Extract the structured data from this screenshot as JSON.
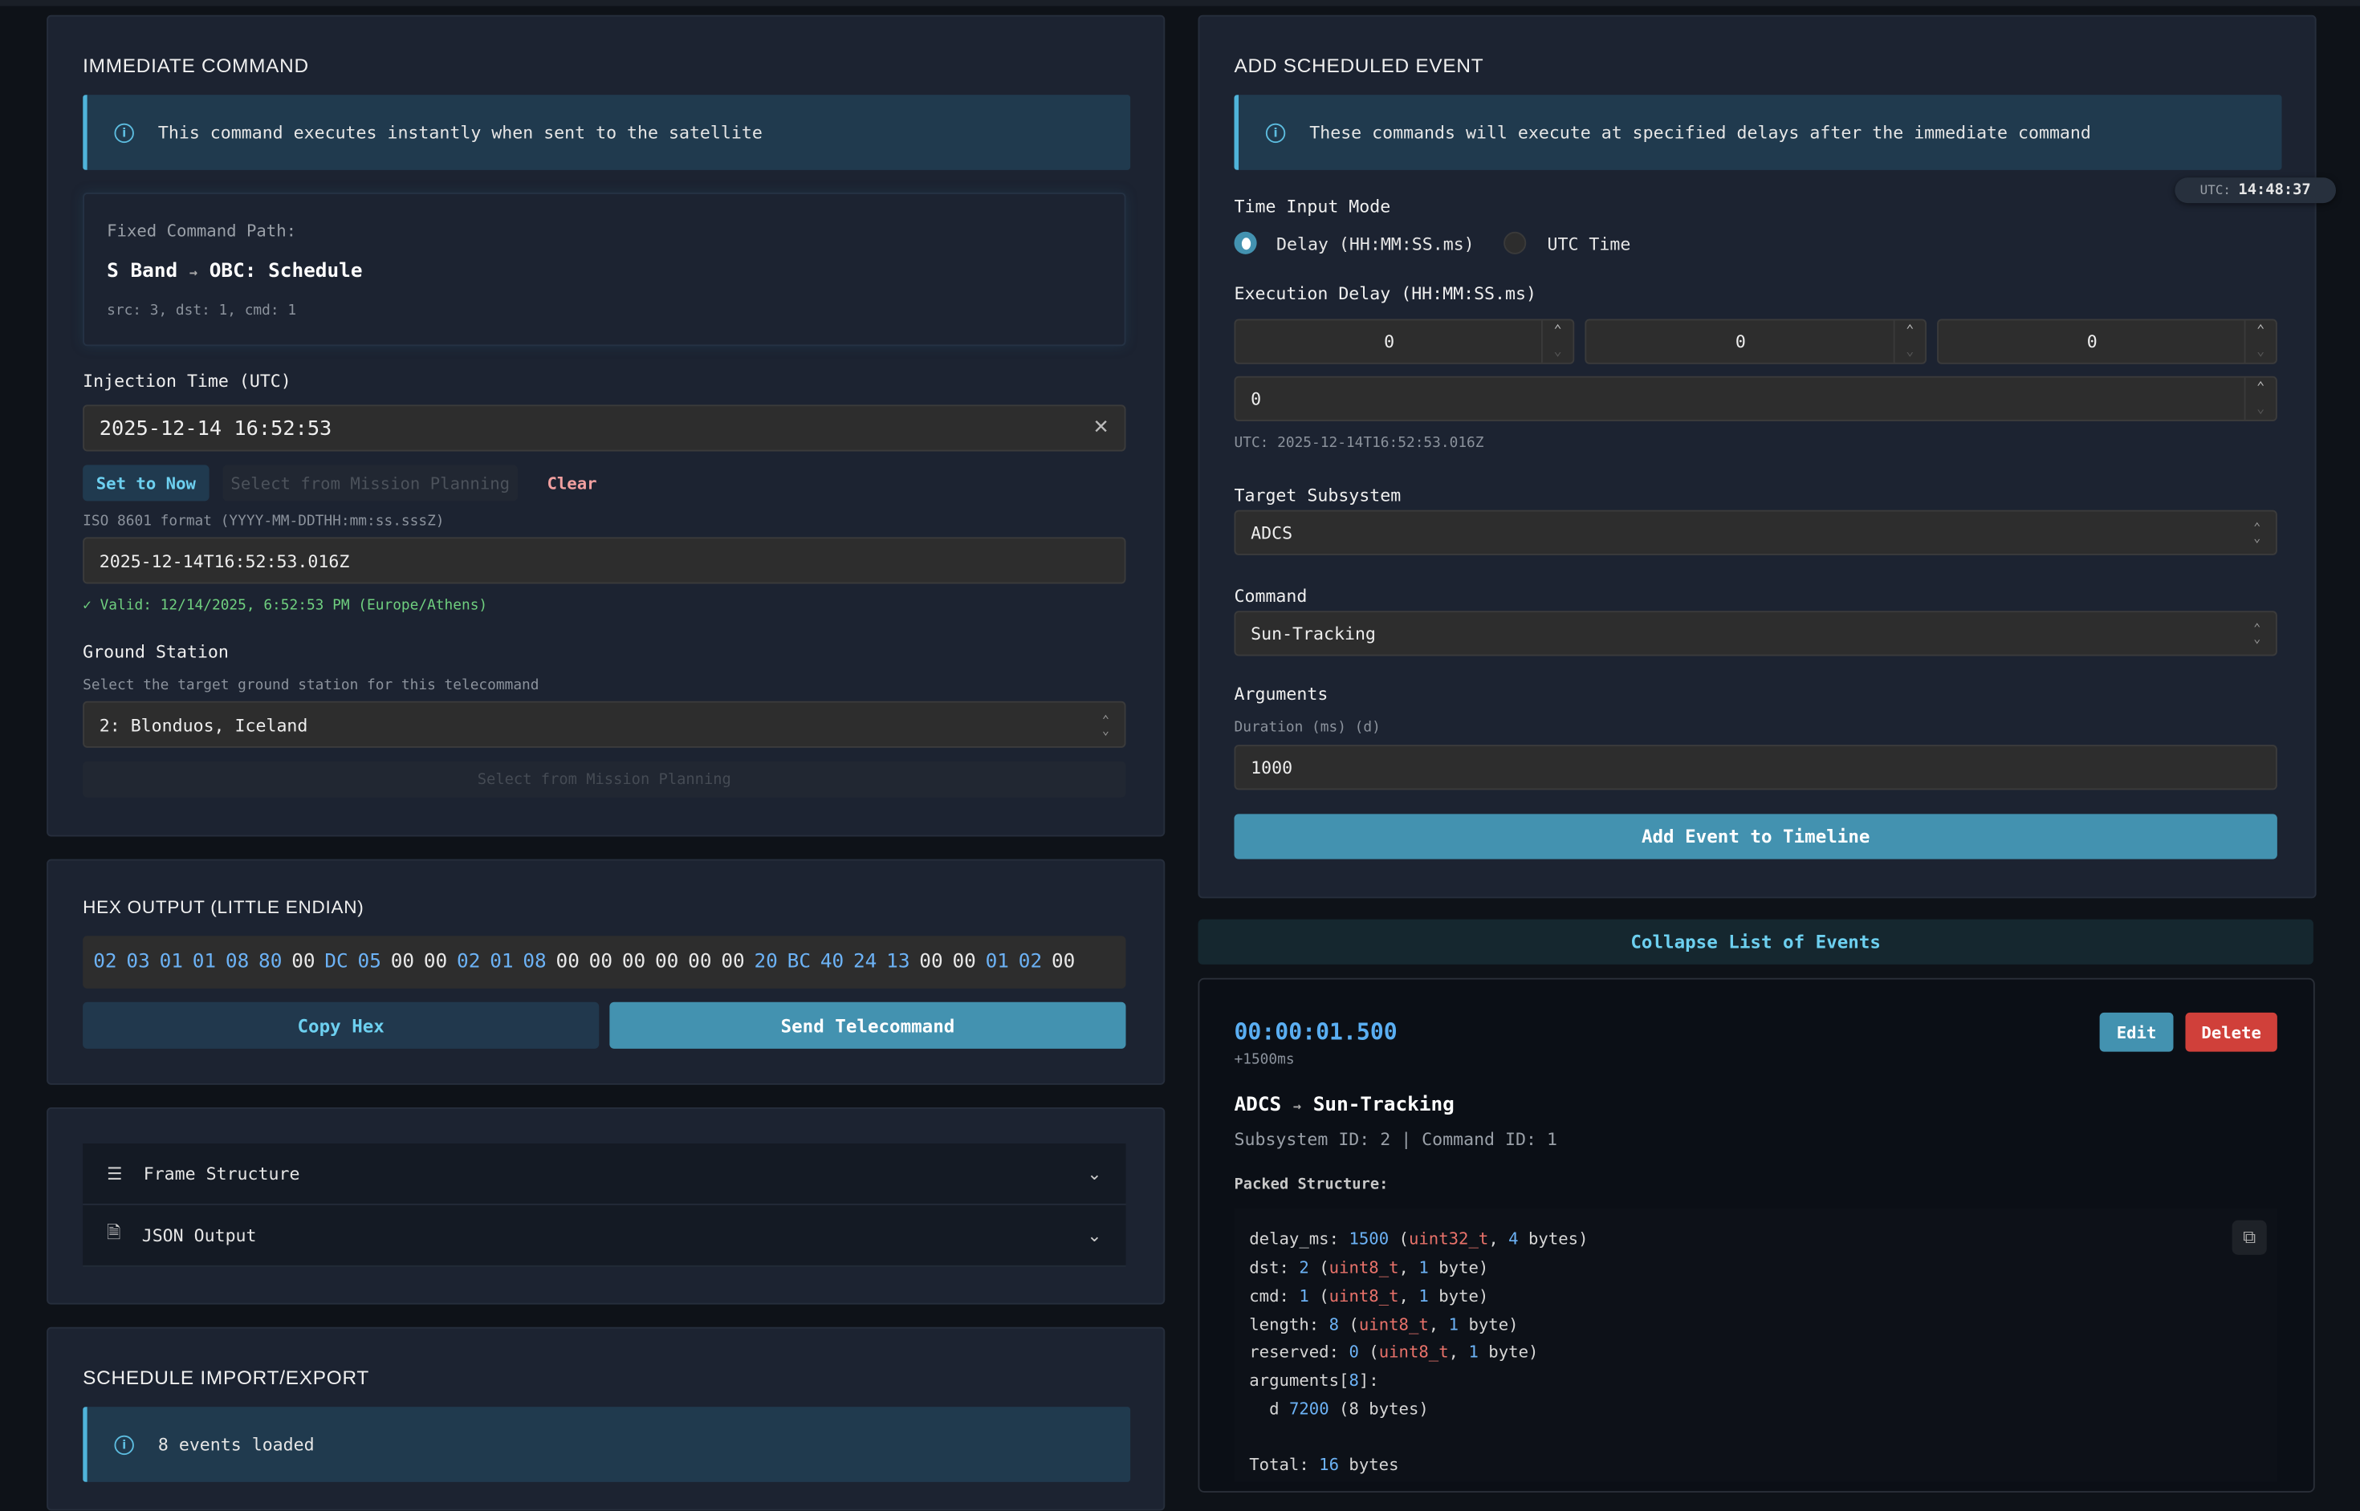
{
  "immediate": {
    "title": "IMMEDIATE COMMAND",
    "info": "This command executes instantly when sent to the satellite",
    "fixed_path_label": "Fixed Command Path:",
    "path_from": "S Band",
    "path_arrow": "→",
    "path_to": "OBC: Schedule",
    "path_ids": "src: 3, dst: 1, cmd: 1",
    "injection_label": "Injection Time (UTC)",
    "injection_value": "2025-12-14 16:52:53",
    "set_now": "Set to Now",
    "select_planning": "Select from Mission Planning",
    "clear": "Clear",
    "iso_label": "ISO 8601 format (YYYY-MM-DDTHH:mm:ss.sssZ)",
    "iso_value": "2025-12-14T16:52:53.016Z",
    "valid_text": "✓ Valid: 12/14/2025, 6:52:53 PM (Europe/Athens)",
    "ground_label": "Ground Station",
    "ground_help": "Select the target ground station for this telecommand",
    "ground_value": "2: Blonduos, Iceland",
    "ground_planning": "Select from Mission Planning"
  },
  "hex": {
    "title": "HEX OUTPUT (LITTLE ENDIAN)",
    "bytes": [
      "02",
      "03",
      "01",
      "01",
      "08",
      "80",
      "00",
      "DC",
      "05",
      "00",
      "00",
      "02",
      "01",
      "08",
      "00",
      "00",
      "00",
      "00",
      "00",
      "00",
      "20",
      "BC",
      "40",
      "24",
      "13",
      "00",
      "00",
      "01",
      "02",
      "00"
    ],
    "copy": "Copy Hex",
    "send": "Send Telecommand"
  },
  "accordion": [
    {
      "label": "Frame Structure",
      "icon": "list-icon"
    },
    {
      "label": "JSON Output",
      "icon": "file-code-icon"
    }
  ],
  "schedule_io": {
    "title": "SCHEDULE IMPORT/EXPORT",
    "info": "8 events loaded"
  },
  "scheduled": {
    "title": "ADD SCHEDULED EVENT",
    "info": "These commands will execute at specified delays after the immediate command",
    "utc_label": "UTC:",
    "utc_clock": "14:48:37",
    "mode_label": "Time Input Mode",
    "mode_delay": "Delay (HH:MM:SS.ms)",
    "mode_utc": "UTC Time",
    "delay_label": "Execution Delay (HH:MM:SS.ms)",
    "hh": "0",
    "mm": "0",
    "ss": "0",
    "ms": "0",
    "utc_preview": "UTC: 2025-12-14T16:52:53.016Z",
    "subsystem_label": "Target Subsystem",
    "subsystem_value": "ADCS",
    "command_label": "Command",
    "command_value": "Sun-Tracking",
    "args_label": "Arguments",
    "arg_name": "Duration (ms) (d)",
    "arg_value": "1000",
    "add_button": "Add Event to Timeline"
  },
  "events": {
    "collapse": "Collapse List of Events",
    "item": {
      "time": "00:00:01.500",
      "offset": "+1500ms",
      "subsystem": "ADCS",
      "arrow": "→",
      "command": "Sun-Tracking",
      "ids": "Subsystem ID: 2 | Command ID: 1",
      "edit": "Edit",
      "delete": "Delete",
      "packed_label": "Packed Structure:",
      "packed_lines": [
        [
          [
            "delay_ms: ",
            ""
          ],
          [
            "1500",
            "num"
          ],
          [
            " (",
            ""
          ],
          [
            "uint32_t",
            "typ"
          ],
          [
            ", ",
            ""
          ],
          [
            "4",
            "num"
          ],
          [
            " bytes)",
            ""
          ]
        ],
        [
          [
            "dst: ",
            ""
          ],
          [
            "2",
            "num"
          ],
          [
            " (",
            ""
          ],
          [
            "uint8_t",
            "typ"
          ],
          [
            ", ",
            ""
          ],
          [
            "1",
            "num"
          ],
          [
            " byte)",
            ""
          ]
        ],
        [
          [
            "cmd: ",
            ""
          ],
          [
            "1",
            "num"
          ],
          [
            " (",
            ""
          ],
          [
            "uint8_t",
            "typ"
          ],
          [
            ", ",
            ""
          ],
          [
            "1",
            "num"
          ],
          [
            " byte)",
            ""
          ]
        ],
        [
          [
            "length: ",
            ""
          ],
          [
            "8",
            "num"
          ],
          [
            " (",
            ""
          ],
          [
            "uint8_t",
            "typ"
          ],
          [
            ", ",
            ""
          ],
          [
            "1",
            "num"
          ],
          [
            " byte)",
            ""
          ]
        ],
        [
          [
            "reserved: ",
            ""
          ],
          [
            "0",
            "num"
          ],
          [
            " (",
            ""
          ],
          [
            "uint8_t",
            "typ"
          ],
          [
            ", ",
            ""
          ],
          [
            "1",
            "num"
          ],
          [
            " byte)",
            ""
          ]
        ],
        [
          [
            "arguments[",
            ""
          ],
          [
            "8",
            "num"
          ],
          [
            "]:",
            ""
          ]
        ],
        [
          [
            "  d ",
            ""
          ],
          [
            "7200",
            "num"
          ],
          [
            " (8 bytes)",
            ""
          ]
        ],
        [
          [
            "",
            ""
          ]
        ],
        [
          [
            "Total: ",
            ""
          ],
          [
            "16",
            "num"
          ],
          [
            " bytes",
            ""
          ]
        ]
      ]
    }
  },
  "colors": {
    "accent": "#4392b0",
    "danger": "#d0403a",
    "info_border": "#4fb3d9",
    "valid": "#6fcf7f",
    "hex_value": "#6cb2f5"
  }
}
